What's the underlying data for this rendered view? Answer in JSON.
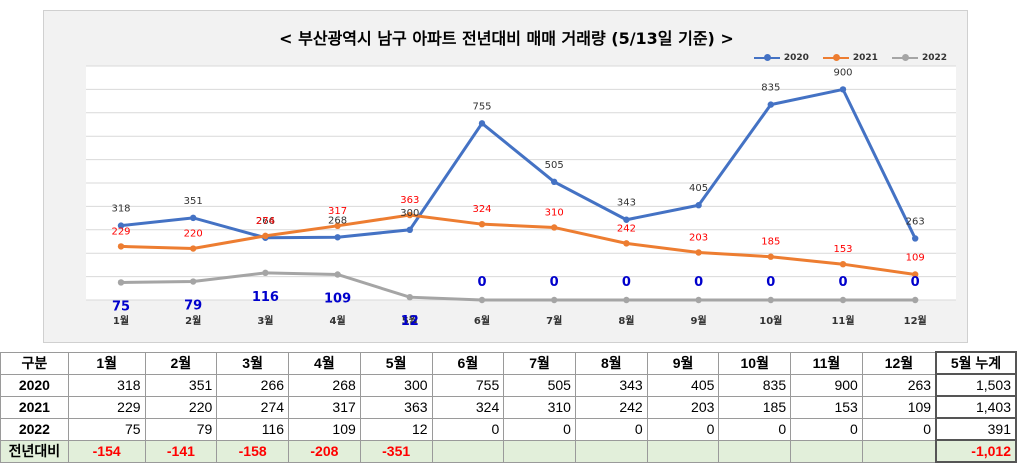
{
  "chart_data": {
    "type": "line",
    "title": "< 부산광역시 남구  아파트 전년대비 매매 거래량 (5/13일 기준) >",
    "categories": [
      "1월",
      "2월",
      "3월",
      "4월",
      "5월",
      "6월",
      "7월",
      "8월",
      "9월",
      "10월",
      "11월",
      "12월"
    ],
    "series": [
      {
        "name": "2020",
        "color": "#4472c4",
        "values": [
          318,
          351,
          266,
          268,
          300,
          755,
          505,
          343,
          405,
          835,
          900,
          263
        ]
      },
      {
        "name": "2021",
        "color": "#ed7d31",
        "values": [
          229,
          220,
          274,
          317,
          363,
          324,
          310,
          242,
          203,
          185,
          153,
          109
        ]
      },
      {
        "name": "2022",
        "color": "#a5a5a5",
        "values": [
          75,
          79,
          116,
          109,
          12,
          0,
          0,
          0,
          0,
          0,
          0,
          0
        ]
      }
    ],
    "ylim": [
      0,
      1000
    ],
    "grid": true,
    "legend_position": "top-right"
  },
  "table": {
    "corner": "구분",
    "months": [
      "1월",
      "2월",
      "3월",
      "4월",
      "5월",
      "6월",
      "7월",
      "8월",
      "9월",
      "10월",
      "11월",
      "12월"
    ],
    "total_header": "5월 누계",
    "rows": [
      {
        "label": "2020",
        "values": [
          "318",
          "351",
          "266",
          "268",
          "300",
          "755",
          "505",
          "343",
          "405",
          "835",
          "900",
          "263"
        ],
        "total": "1,503"
      },
      {
        "label": "2021",
        "values": [
          "229",
          "220",
          "274",
          "317",
          "363",
          "324",
          "310",
          "242",
          "203",
          "185",
          "153",
          "109"
        ],
        "total": "1,403"
      },
      {
        "label": "2022",
        "values": [
          "75",
          "79",
          "116",
          "109",
          "12",
          "0",
          "0",
          "0",
          "0",
          "0",
          "0",
          "0"
        ],
        "total": "391"
      }
    ],
    "diff_row": {
      "label": "전년대비",
      "values": [
        "-154",
        "-141",
        "-158",
        "-208",
        "-351",
        "",
        "",
        "",
        "",
        "",
        "",
        ""
      ],
      "total": "-1,012"
    }
  }
}
